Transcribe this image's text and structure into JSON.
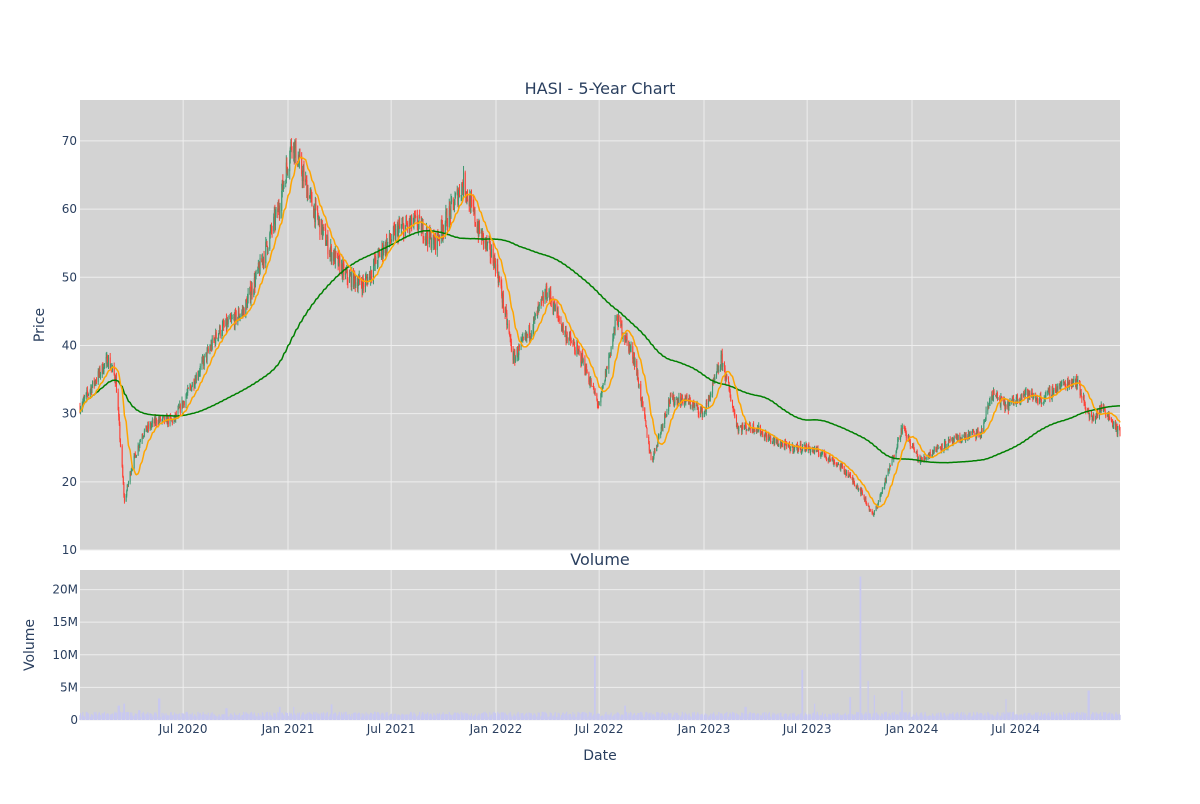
{
  "colors": {
    "plot_bg": "#d3d3d3",
    "grid": "#eeeeee",
    "text": "#2a3f5f",
    "candle_up": "#3d9970",
    "candle_down": "#ff4136",
    "ma_short": "#ffa500",
    "ma_long": "#008000",
    "volume_bar": "#c8c8f0"
  },
  "chart_data": [
    {
      "type": "candlestick",
      "title": "HASI - 5-Year Chart",
      "ylabel": "Price",
      "ylim": [
        10,
        76
      ],
      "yticks": [
        10,
        20,
        30,
        40,
        50,
        60,
        70
      ],
      "grid": true,
      "legend": "none",
      "date_range": [
        "2020-01-02",
        "2024-12-31"
      ],
      "price_anchors": [
        [
          "2020-01-02",
          31
        ],
        [
          "2020-02-20",
          38
        ],
        [
          "2020-03-05",
          35
        ],
        [
          "2020-03-20",
          17
        ],
        [
          "2020-04-01",
          22
        ],
        [
          "2020-04-20",
          27
        ],
        [
          "2020-05-15",
          29
        ],
        [
          "2020-06-15",
          29
        ],
        [
          "2020-07-15",
          34
        ],
        [
          "2020-09-01",
          42
        ],
        [
          "2020-10-15",
          45
        ],
        [
          "2020-11-15",
          52
        ],
        [
          "2020-12-15",
          60
        ],
        [
          "2021-01-08",
          70
        ],
        [
          "2021-02-15",
          60
        ],
        [
          "2021-03-15",
          54
        ],
        [
          "2021-04-15",
          50
        ],
        [
          "2021-05-15",
          49
        ],
        [
          "2021-06-15",
          54
        ],
        [
          "2021-07-15",
          57
        ],
        [
          "2021-08-15",
          58
        ],
        [
          "2021-09-15",
          55
        ],
        [
          "2021-10-15",
          60
        ],
        [
          "2021-11-05",
          64
        ],
        [
          "2021-12-01",
          57
        ],
        [
          "2022-01-01",
          52
        ],
        [
          "2022-02-01",
          38
        ],
        [
          "2022-03-01",
          42
        ],
        [
          "2022-04-01",
          48
        ],
        [
          "2022-05-01",
          42
        ],
        [
          "2022-06-01",
          38
        ],
        [
          "2022-07-01",
          31
        ],
        [
          "2022-08-01",
          44
        ],
        [
          "2022-09-01",
          38
        ],
        [
          "2022-10-01",
          23
        ],
        [
          "2022-11-01",
          32
        ],
        [
          "2022-12-01",
          32
        ],
        [
          "2023-01-01",
          30
        ],
        [
          "2023-02-01",
          38
        ],
        [
          "2023-03-01",
          28
        ],
        [
          "2023-04-01",
          28
        ],
        [
          "2023-05-01",
          26
        ],
        [
          "2023-06-01",
          25
        ],
        [
          "2023-07-01",
          25
        ],
        [
          "2023-08-01",
          24
        ],
        [
          "2023-09-01",
          22
        ],
        [
          "2023-10-01",
          19
        ],
        [
          "2023-10-25",
          15
        ],
        [
          "2023-11-15",
          20
        ],
        [
          "2023-12-15",
          28
        ],
        [
          "2024-01-15",
          23
        ],
        [
          "2024-02-15",
          25
        ],
        [
          "2024-03-15",
          26
        ],
        [
          "2024-04-15",
          27
        ],
        [
          "2024-05-01",
          27
        ],
        [
          "2024-05-20",
          33
        ],
        [
          "2024-06-15",
          31
        ],
        [
          "2024-07-15",
          33
        ],
        [
          "2024-08-15",
          32
        ],
        [
          "2024-09-15",
          34
        ],
        [
          "2024-10-15",
          35
        ],
        [
          "2024-11-10",
          29
        ],
        [
          "2024-12-01",
          31
        ],
        [
          "2024-12-31",
          27
        ]
      ],
      "series": [
        {
          "name": "short moving average",
          "color": "#ffa500"
        },
        {
          "name": "long moving average",
          "color": "#008000"
        }
      ]
    },
    {
      "type": "bar",
      "title": "Volume",
      "xlabel": "Date",
      "ylabel": "Volume",
      "ylim": [
        0,
        23000000
      ],
      "yticks": [
        0,
        5000000,
        10000000,
        15000000,
        20000000
      ],
      "ytick_labels": [
        "0",
        "5M",
        "10M",
        "15M",
        "20M"
      ],
      "base_volume": 900000,
      "volume_spikes": [
        [
          "2020-03-10",
          2200000
        ],
        [
          "2020-03-20",
          2500000
        ],
        [
          "2020-04-15",
          1500000
        ],
        [
          "2020-05-20",
          3300000
        ],
        [
          "2020-09-15",
          1800000
        ],
        [
          "2020-12-18",
          2000000
        ],
        [
          "2021-01-10",
          2000000
        ],
        [
          "2021-03-19",
          2400000
        ],
        [
          "2022-06-24",
          9800000
        ],
        [
          "2022-08-15",
          2200000
        ],
        [
          "2023-03-15",
          2000000
        ],
        [
          "2023-06-23",
          7700000
        ],
        [
          "2023-07-15",
          2500000
        ],
        [
          "2023-09-15",
          3500000
        ],
        [
          "2023-10-02",
          22000000
        ],
        [
          "2023-10-15",
          6000000
        ],
        [
          "2023-10-28",
          3800000
        ],
        [
          "2023-12-15",
          4500000
        ],
        [
          "2024-06-15",
          3200000
        ],
        [
          "2024-11-06",
          4500000
        ]
      ],
      "x_ticks": [
        {
          "date": "2020-07-01",
          "label": "Jul 2020"
        },
        {
          "date": "2021-01-01",
          "label": "Jan 2021"
        },
        {
          "date": "2021-07-01",
          "label": "Jul 2021"
        },
        {
          "date": "2022-01-01",
          "label": "Jan 2022"
        },
        {
          "date": "2022-07-01",
          "label": "Jul 2022"
        },
        {
          "date": "2023-01-01",
          "label": "Jan 2023"
        },
        {
          "date": "2023-07-01",
          "label": "Jul 2023"
        },
        {
          "date": "2024-01-01",
          "label": "Jan 2024"
        },
        {
          "date": "2024-07-01",
          "label": "Jul 2024"
        }
      ]
    }
  ]
}
